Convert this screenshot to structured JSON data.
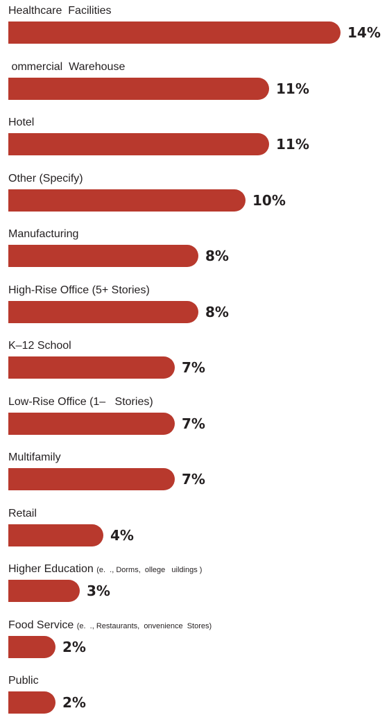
{
  "chart_data": {
    "type": "bar",
    "orientation": "horizontal",
    "unit": "%",
    "bar_color": "#b8392d",
    "text_color": "#231f20",
    "categories": [
      {
        "label": "Healthcare  Facilities",
        "note": ""
      },
      {
        "label": " ommercial  Warehouse",
        "note": ""
      },
      {
        "label": "Hotel",
        "note": ""
      },
      {
        "label": "Other (Specify)",
        "note": ""
      },
      {
        "label": "Manufacturing",
        "note": ""
      },
      {
        "label": "High-Rise Office (5+ Stories)",
        "note": ""
      },
      {
        "label": "K–12 School",
        "note": ""
      },
      {
        "label": "Low-Rise Office (1–   Stories)",
        "note": ""
      },
      {
        "label": "Multifamily",
        "note": ""
      },
      {
        "label": "Retail",
        "note": ""
      },
      {
        "label": "Higher Education",
        "note": "(e.  ., Dorms,  ollege   uildings )"
      },
      {
        "label": "Food Service",
        "note": "(e.  ., Restaurants,  onvenience  Stores)"
      },
      {
        "label": "Public",
        "note": ""
      }
    ],
    "values": [
      14,
      11,
      11,
      10,
      8,
      8,
      7,
      7,
      7,
      4,
      3,
      2,
      2
    ],
    "value_labels": [
      "14%",
      "11%",
      "11%",
      "10%",
      "8%",
      "8%",
      "7%",
      "7%",
      "7%",
      "4%",
      "3%",
      "2%",
      "2%"
    ]
  }
}
